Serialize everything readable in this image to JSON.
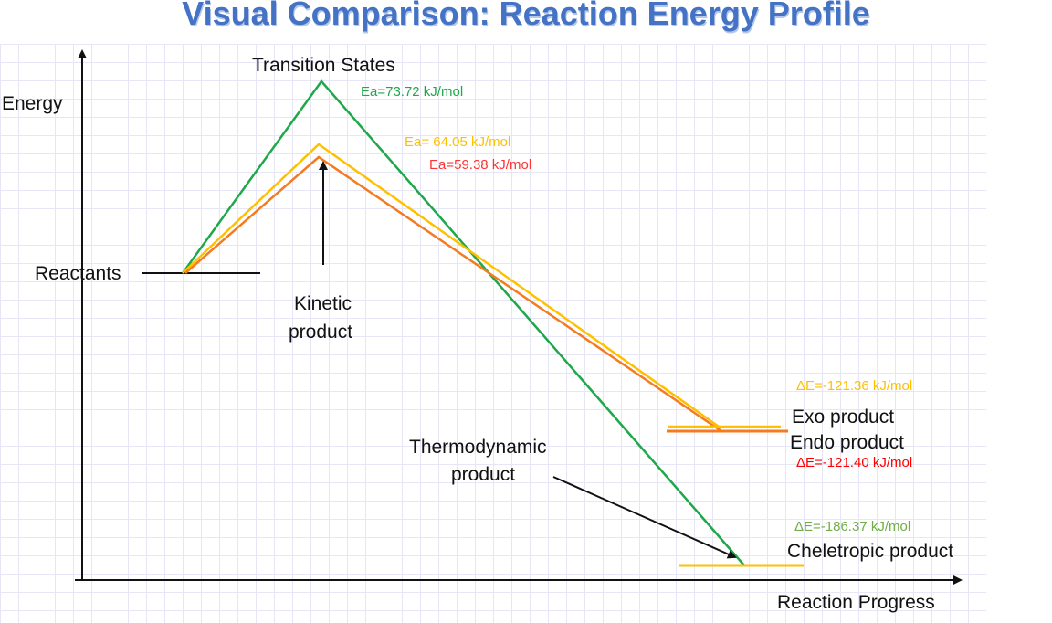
{
  "title": "Visual Comparison: Reaction Energy Profile",
  "axes": {
    "y_label": "Energy",
    "x_label": "Reaction Progress"
  },
  "labels": {
    "transition_states": "Transition States",
    "reactants": "Reactants",
    "kinetic_product": [
      "Kinetic",
      "product"
    ],
    "thermodynamic_product": [
      "Thermodynamic",
      "product"
    ],
    "exo_product": "Exo product",
    "endo_product": "Endo product",
    "cheletropic_product": "Cheletropic product"
  },
  "values": {
    "ea_cheletropic": "Ea=73.72 kJ/mol",
    "ea_exo": "Ea= 64.05 kJ/mol",
    "ea_endo": "Ea=59.38 kJ/mol",
    "de_exo": "ΔE=-121.36 kJ/mol",
    "de_endo": "ΔE=-121.40 kJ/mol",
    "de_cheletropic": "ΔE=-186.37 kJ/mol"
  },
  "colors": {
    "cheletropic": "#1fa84a",
    "exo": "#ffc000",
    "endo": "#f47b20",
    "title": "#4472c4",
    "de_endo_text": "#ff0000",
    "ea_endo_text": "#ff3333",
    "de_chel_text": "#70ad47"
  }
}
